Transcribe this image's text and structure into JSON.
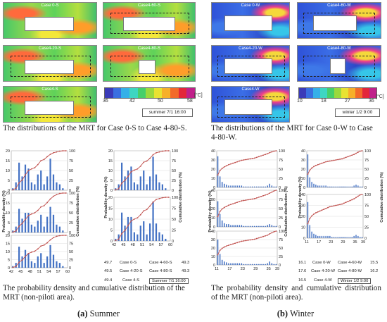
{
  "maps": {
    "summer": [
      "Case 0-S",
      "Case4-60-S",
      "Case4-20-S",
      "Case4-80-S",
      "Case4-S"
    ],
    "winter": [
      "Case 0-W",
      "Case4-60-W",
      "Case4-20-W",
      "Case4-80-W",
      "Case4-W"
    ]
  },
  "legend": {
    "summer": {
      "ticks": [
        "36",
        "42",
        "50",
        "58"
      ],
      "unit": "[°C]",
      "label": "summer  7/1  16:00",
      "colors": [
        "#3b3bb8",
        "#3a6fe0",
        "#35b0e8",
        "#3ed6c2",
        "#46cf6a",
        "#9bd93d",
        "#e8e232",
        "#f6b02a",
        "#f26a2a",
        "#e3263a",
        "#c0208a"
      ]
    },
    "winter": {
      "ticks": [
        "10",
        "18",
        "27",
        "36"
      ],
      "unit": "[°C]",
      "label": "winter  1/2  9:00",
      "colors": [
        "#3b3bb8",
        "#3a6fe0",
        "#35b0e8",
        "#3ed6c2",
        "#46cf6a",
        "#9bd93d",
        "#e8e232",
        "#f6b02a",
        "#f26a2a",
        "#e3263a",
        "#c0208a"
      ]
    }
  },
  "captions": {
    "summer_maps": "The distributions of the MRT for Case 0-S to Case 4-80-S.",
    "winter_maps": "The distributions of the MRT for Case 0-W to Case 4-80-W.",
    "summer_charts": "The probability density and cumulative distribution of the MRT (non-piloti area).",
    "winter_charts": "The probability density and cumulative distribution of the MRT (non-piloti area).",
    "sub_a_letter": "(a)",
    "sub_a_text": " Summer",
    "sub_b_letter": "(b)",
    "sub_b_text": " Winter"
  },
  "axes": {
    "ylabel_left": "Probability density (%)",
    "ylabel_right": "Cumulative distribution (%)",
    "summer_xticks": [
      "42",
      "45",
      "48",
      "51",
      "54",
      "57",
      "60"
    ],
    "winter_xticks": [
      "11",
      "17",
      "23",
      "29",
      "35",
      "39"
    ]
  },
  "tables": {
    "summer": {
      "rows": [
        {
          "lval": "49.7",
          "left": "Case 0-S",
          "right": "Case 4-60-S",
          "rval": "49.3"
        },
        {
          "lval": "49.5",
          "left": "Case 4-20-S",
          "right": "Case 4-80-S",
          "rval": "49.3"
        },
        {
          "lval": "49.4",
          "left": "Case 4-S",
          "right": "Summer 7/1 16:00",
          "rval": ""
        }
      ]
    },
    "winter": {
      "rows": [
        {
          "lval": "16.1",
          "left": "Case 0-W",
          "right": "Case 4-60-W",
          "rval": "15.5"
        },
        {
          "lval": "17.6",
          "left": "Case 4-20-W",
          "right": "Case 4-80-W",
          "rval": "16.2"
        },
        {
          "lval": "16.5",
          "left": "Case 4-W",
          "right": "Winter 1/2 9:00",
          "rval": ""
        }
      ]
    }
  },
  "chart_data": [
    {
      "type": "bar",
      "group": "summer",
      "panel": "left-1",
      "xlim": [
        42,
        60
      ],
      "ylim": [
        0,
        20
      ],
      "y2lim": [
        0,
        100
      ],
      "x": [
        42,
        43,
        44,
        45,
        46,
        47,
        48,
        49,
        50,
        51,
        52,
        53,
        54,
        55,
        56,
        57,
        58,
        59
      ],
      "density": [
        1,
        4,
        14,
        7,
        13,
        11,
        4,
        3,
        8,
        10,
        3,
        7,
        16,
        8,
        4,
        3,
        1,
        0
      ],
      "cumulative": [
        1,
        5,
        19,
        26,
        39,
        50,
        54,
        57,
        65,
        75,
        78,
        85,
        91,
        95,
        97,
        99,
        100,
        100
      ]
    },
    {
      "type": "bar",
      "group": "summer",
      "panel": "left-2",
      "xlim": [
        42,
        60
      ],
      "ylim": [
        0,
        20
      ],
      "y2lim": [
        0,
        100
      ],
      "x": [
        42,
        43,
        44,
        45,
        46,
        47,
        48,
        49,
        50,
        51,
        52,
        53,
        54,
        55,
        56,
        57,
        58,
        59
      ],
      "density": [
        1,
        3,
        12,
        7,
        10,
        10,
        4,
        3,
        6,
        9,
        3,
        8,
        13,
        9,
        4,
        3,
        1,
        0
      ],
      "cumulative": [
        1,
        4,
        16,
        23,
        33,
        43,
        47,
        50,
        56,
        65,
        68,
        76,
        85,
        92,
        96,
        99,
        100,
        100
      ]
    },
    {
      "type": "bar",
      "group": "summer",
      "panel": "left-3",
      "xlim": [
        42,
        60
      ],
      "ylim": [
        0,
        20
      ],
      "y2lim": [
        0,
        100
      ],
      "x": [
        42,
        43,
        44,
        45,
        46,
        47,
        48,
        49,
        50,
        51,
        52,
        53,
        54,
        55,
        56,
        57,
        58,
        59
      ],
      "density": [
        1,
        3,
        13,
        7,
        11,
        9,
        4,
        3,
        7,
        9,
        3,
        7,
        14,
        8,
        4,
        3,
        1,
        0
      ],
      "cumulative": [
        1,
        4,
        17,
        24,
        35,
        44,
        48,
        51,
        58,
        67,
        70,
        77,
        86,
        93,
        97,
        99,
        100,
        100
      ]
    },
    {
      "type": "bar",
      "group": "summer",
      "panel": "right-1",
      "xlim": [
        42,
        60
      ],
      "ylim": [
        0,
        20
      ],
      "y2lim": [
        0,
        100
      ],
      "x": [
        42,
        43,
        44,
        45,
        46,
        47,
        48,
        49,
        50,
        51,
        52,
        53,
        54,
        55,
        56,
        57,
        58,
        59
      ],
      "density": [
        1,
        3,
        14,
        7,
        10,
        12,
        4,
        3,
        7,
        10,
        3,
        7,
        17,
        8,
        4,
        3,
        1,
        0
      ],
      "cumulative": [
        1,
        4,
        18,
        25,
        35,
        47,
        51,
        54,
        61,
        71,
        74,
        81,
        90,
        95,
        97,
        99,
        100,
        100
      ]
    },
    {
      "type": "bar",
      "group": "summer",
      "panel": "right-2",
      "xlim": [
        42,
        60
      ],
      "ylim": [
        0,
        20
      ],
      "y2lim": [
        0,
        100
      ],
      "x": [
        42,
        43,
        44,
        45,
        46,
        47,
        48,
        49,
        50,
        51,
        52,
        53,
        54,
        55,
        56,
        57,
        58,
        59
      ],
      "density": [
        1,
        3,
        13,
        7,
        11,
        11,
        4,
        3,
        7,
        9,
        3,
        8,
        18,
        8,
        4,
        3,
        1,
        0
      ],
      "cumulative": [
        1,
        4,
        17,
        24,
        35,
        46,
        50,
        53,
        60,
        69,
        72,
        80,
        89,
        95,
        97,
        99,
        100,
        100
      ]
    },
    {
      "type": "bar",
      "group": "winter",
      "panel": "left-1",
      "xlim": [
        11,
        39
      ],
      "ylim": [
        0,
        40
      ],
      "y2lim": [
        0,
        100
      ],
      "x": [
        11,
        12,
        13,
        14,
        15,
        16,
        17,
        18,
        19,
        20,
        21,
        22,
        23,
        24,
        25,
        26,
        27,
        28,
        29,
        30,
        31,
        32,
        33,
        34,
        35,
        36,
        37,
        38
      ],
      "density": [
        34,
        12,
        6,
        4,
        3,
        2,
        2,
        2,
        2,
        2,
        2,
        2,
        1,
        1,
        1,
        1,
        1,
        1,
        1,
        1,
        1,
        1,
        1,
        2,
        4,
        2,
        1,
        1
      ],
      "cumulative": [
        34,
        46,
        52,
        56,
        59,
        62,
        64,
        66,
        68,
        70,
        72,
        74,
        75,
        76,
        77,
        78,
        79,
        80,
        82,
        84,
        86,
        88,
        90,
        92,
        95,
        97,
        99,
        100
      ]
    },
    {
      "type": "bar",
      "group": "winter",
      "panel": "left-2",
      "xlim": [
        11,
        39
      ],
      "ylim": [
        0,
        40
      ],
      "y2lim": [
        0,
        100
      ],
      "x": [
        11,
        12,
        13,
        14,
        15,
        16,
        17,
        18,
        19,
        20,
        21,
        22,
        23,
        24,
        25,
        26,
        27,
        28,
        29,
        30,
        31,
        32,
        33,
        34,
        35,
        36,
        37,
        38
      ],
      "density": [
        28,
        14,
        7,
        4,
        3,
        3,
        2,
        2,
        2,
        2,
        2,
        2,
        1,
        1,
        1,
        1,
        1,
        1,
        1,
        1,
        1,
        1,
        1,
        2,
        3,
        2,
        1,
        1
      ],
      "cumulative": [
        28,
        42,
        49,
        53,
        56,
        59,
        61,
        63,
        65,
        67,
        69,
        71,
        72,
        73,
        74,
        75,
        76,
        77,
        79,
        81,
        83,
        85,
        87,
        89,
        92,
        95,
        98,
        100
      ]
    },
    {
      "type": "bar",
      "group": "winter",
      "panel": "left-3",
      "xlim": [
        11,
        39
      ],
      "ylim": [
        0,
        40
      ],
      "y2lim": [
        0,
        100
      ],
      "x": [
        11,
        12,
        13,
        14,
        15,
        16,
        17,
        18,
        19,
        20,
        21,
        22,
        23,
        24,
        25,
        26,
        27,
        28,
        29,
        30,
        31,
        32,
        33,
        34,
        35,
        36,
        37,
        38
      ],
      "density": [
        30,
        13,
        6,
        4,
        3,
        2,
        2,
        2,
        2,
        2,
        2,
        2,
        1,
        1,
        1,
        1,
        1,
        1,
        1,
        1,
        1,
        1,
        1,
        2,
        4,
        2,
        1,
        1
      ],
      "cumulative": [
        30,
        43,
        49,
        53,
        56,
        58,
        60,
        62,
        64,
        66,
        68,
        70,
        71,
        72,
        73,
        74,
        75,
        76,
        78,
        80,
        82,
        84,
        86,
        88,
        92,
        95,
        98,
        100
      ]
    },
    {
      "type": "bar",
      "group": "winter",
      "panel": "right-1",
      "xlim": [
        11,
        39
      ],
      "ylim": [
        0,
        40
      ],
      "y2lim": [
        0,
        100
      ],
      "x": [
        11,
        12,
        13,
        14,
        15,
        16,
        17,
        18,
        19,
        20,
        21,
        22,
        23,
        24,
        25,
        26,
        27,
        28,
        29,
        30,
        31,
        32,
        33,
        34,
        35,
        36,
        37,
        38
      ],
      "density": [
        36,
        11,
        6,
        4,
        3,
        2,
        2,
        2,
        2,
        2,
        1,
        1,
        1,
        1,
        1,
        1,
        1,
        1,
        1,
        1,
        1,
        1,
        1,
        2,
        3,
        2,
        1,
        1
      ],
      "cumulative": [
        36,
        47,
        53,
        57,
        60,
        62,
        64,
        66,
        68,
        70,
        71,
        72,
        73,
        74,
        75,
        76,
        77,
        78,
        80,
        82,
        84,
        86,
        88,
        90,
        93,
        96,
        99,
        100
      ]
    },
    {
      "type": "bar",
      "group": "winter",
      "panel": "right-2",
      "xlim": [
        11,
        39
      ],
      "ylim": [
        0,
        40
      ],
      "y2lim": [
        0,
        100
      ],
      "x": [
        11,
        12,
        13,
        14,
        15,
        16,
        17,
        18,
        19,
        20,
        21,
        22,
        23,
        24,
        25,
        26,
        27,
        28,
        29,
        30,
        31,
        32,
        33,
        34,
        35,
        36,
        37,
        38
      ],
      "density": [
        33,
        12,
        6,
        4,
        3,
        2,
        2,
        2,
        2,
        2,
        2,
        2,
        1,
        1,
        1,
        1,
        1,
        1,
        1,
        1,
        1,
        1,
        1,
        2,
        3,
        2,
        1,
        1
      ],
      "cumulative": [
        33,
        45,
        51,
        55,
        58,
        60,
        62,
        64,
        66,
        68,
        70,
        72,
        73,
        74,
        75,
        76,
        77,
        78,
        80,
        82,
        84,
        86,
        88,
        90,
        93,
        96,
        99,
        100
      ]
    }
  ]
}
